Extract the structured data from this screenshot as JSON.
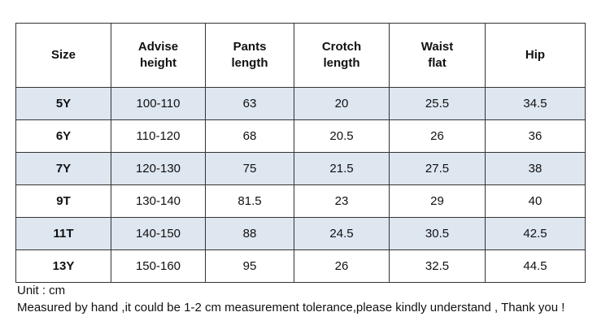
{
  "table": {
    "header": [
      [
        "Size"
      ],
      [
        "Advise",
        "height"
      ],
      [
        "Pants",
        "length"
      ],
      [
        "Crotch",
        "length"
      ],
      [
        "Waist",
        "flat"
      ],
      [
        "Hip"
      ]
    ],
    "rows": [
      [
        "5Y",
        "100-110",
        "63",
        "20",
        "25.5",
        "34.5"
      ],
      [
        "6Y",
        "110-120",
        "68",
        "20.5",
        "26",
        "36"
      ],
      [
        "7Y",
        "120-130",
        "75",
        "21.5",
        "27.5",
        "38"
      ],
      [
        "9T",
        "130-140",
        "81.5",
        "23",
        "29",
        "40"
      ],
      [
        "11T",
        "140-150",
        "88",
        "24.5",
        "30.5",
        "42.5"
      ],
      [
        "13Y",
        "150-160",
        "95",
        "26",
        "32.5",
        "44.5"
      ]
    ]
  },
  "notes": [
    "Unit : cm",
    "Measured by hand ,it could be 1-2 cm measurement tolerance,please kindly understand , Thank you !"
  ]
}
